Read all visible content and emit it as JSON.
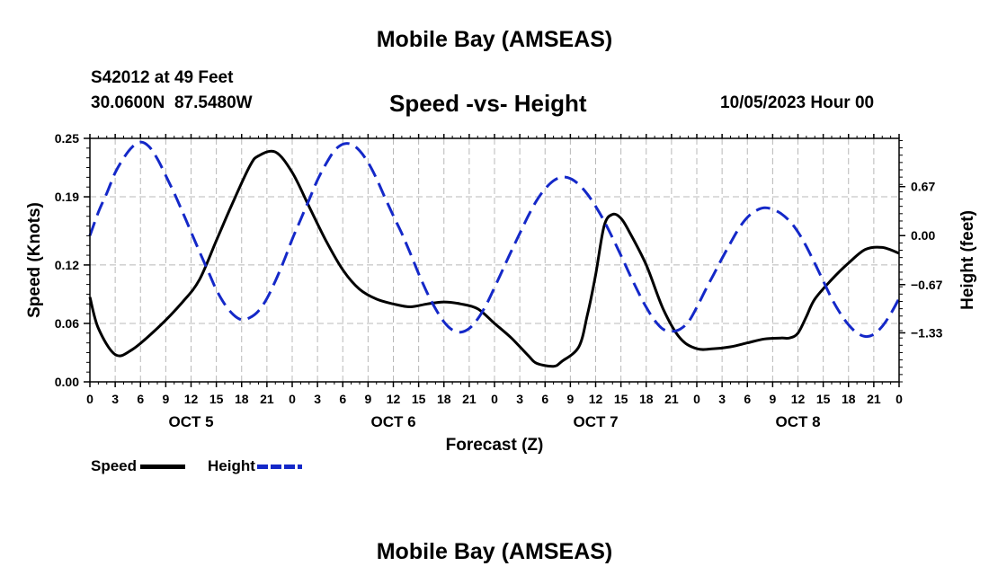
{
  "page": {
    "title_top": "Mobile Bay (AMSEAS)",
    "title_bottom": "Mobile Bay (AMSEAS)"
  },
  "chart_data": {
    "type": "line",
    "title": "Speed -vs- Height",
    "station": "S42012 at 49 Feet",
    "coordinates": "30.0600N  87.5480W",
    "datetime": "10/05/2023 Hour 00",
    "xlabel": "Forecast (Z)",
    "ylabel_left": "Speed (Knots)",
    "ylabel_right": "Height (feet)",
    "x_range": [
      0,
      96
    ],
    "x_ticks": [
      0,
      3,
      6,
      9,
      12,
      15,
      18,
      21,
      24,
      27,
      30,
      33,
      36,
      39,
      42,
      45,
      48,
      51,
      54,
      57,
      60,
      63,
      66,
      69,
      72,
      75,
      78,
      81,
      84,
      87,
      90,
      93,
      96
    ],
    "x_tick_labels": [
      "0",
      "3",
      "6",
      "9",
      "12",
      "15",
      "18",
      "21",
      "0",
      "3",
      "6",
      "9",
      "12",
      "15",
      "18",
      "21",
      "0",
      "3",
      "6",
      "9",
      "12",
      "15",
      "18",
      "21",
      "0",
      "3",
      "6",
      "9",
      "12",
      "15",
      "18",
      "21",
      "0"
    ],
    "day_labels": [
      {
        "label": "OCT 5",
        "x": 12
      },
      {
        "label": "OCT 6",
        "x": 36
      },
      {
        "label": "OCT 7",
        "x": 60
      },
      {
        "label": "OCT 8",
        "x": 84
      }
    ],
    "y_left": {
      "range": [
        0,
        0.25
      ],
      "ticks": [
        0,
        0.06,
        0.12,
        0.19,
        0.25
      ],
      "tick_labels": [
        "0.00",
        "0.06",
        "0.12",
        "0.19",
        "0.25"
      ]
    },
    "y_right": {
      "range": [
        -2.0,
        1.33
      ],
      "ticks": [
        0.67,
        0.0,
        -0.67,
        -1.33
      ],
      "tick_labels": [
        "0.67",
        "0.00",
        "−0.67",
        "−1.33"
      ]
    },
    "grid": true,
    "series": [
      {
        "name": "Speed",
        "axis": "left",
        "color": "#000000",
        "dash": "solid",
        "x": [
          0,
          1,
          3,
          5,
          8,
          11,
          13,
          15,
          17,
          19,
          20,
          22,
          24,
          26,
          28,
          30,
          32,
          34,
          36,
          38,
          40,
          42,
          44,
          46,
          48,
          50,
          52,
          53,
          55,
          56,
          58,
          59,
          60,
          61,
          62,
          63,
          64,
          66,
          68,
          70,
          72,
          74,
          76,
          78,
          80,
          82,
          83,
          84,
          85,
          86,
          88,
          90,
          92,
          94,
          96
        ],
        "values": [
          0.087,
          0.055,
          0.028,
          0.033,
          0.055,
          0.082,
          0.105,
          0.145,
          0.185,
          0.222,
          0.232,
          0.236,
          0.215,
          0.18,
          0.145,
          0.115,
          0.095,
          0.085,
          0.08,
          0.077,
          0.08,
          0.082,
          0.08,
          0.075,
          0.06,
          0.045,
          0.027,
          0.019,
          0.016,
          0.021,
          0.036,
          0.068,
          0.11,
          0.16,
          0.172,
          0.168,
          0.154,
          0.12,
          0.075,
          0.045,
          0.034,
          0.034,
          0.036,
          0.04,
          0.044,
          0.045,
          0.045,
          0.05,
          0.067,
          0.085,
          0.105,
          0.122,
          0.136,
          0.138,
          0.132
        ]
      },
      {
        "name": "Height",
        "axis": "right",
        "color": "#1428c8",
        "dash": "dashed",
        "x": [
          0,
          1,
          2,
          3,
          4,
          5,
          6,
          7,
          8,
          9,
          10,
          11,
          12,
          13,
          14,
          15,
          16,
          17,
          18,
          19,
          20,
          21,
          22,
          23,
          24,
          25,
          26,
          27,
          28,
          29,
          30,
          31,
          32,
          33,
          34,
          35,
          36,
          37,
          38,
          39,
          40,
          41,
          42,
          43,
          44,
          45,
          46,
          47,
          48,
          49,
          50,
          51,
          52,
          53,
          54,
          55,
          56,
          57,
          58,
          59,
          60,
          61,
          62,
          63,
          64,
          65,
          66,
          67,
          68,
          69,
          70,
          71,
          72,
          73,
          74,
          75,
          76,
          77,
          78,
          79,
          80,
          81,
          82,
          83,
          84,
          85,
          86,
          87,
          88,
          89,
          90,
          91,
          92,
          93,
          94,
          95,
          96
        ],
        "values": [
          0.0,
          0.32,
          0.58,
          0.86,
          1.06,
          1.21,
          1.28,
          1.22,
          1.05,
          0.82,
          0.58,
          0.32,
          0.05,
          -0.22,
          -0.48,
          -0.74,
          -0.94,
          -1.08,
          -1.15,
          -1.12,
          -1.03,
          -0.86,
          -0.62,
          -0.35,
          -0.05,
          0.22,
          0.49,
          0.76,
          0.98,
          1.16,
          1.25,
          1.25,
          1.16,
          1.0,
          0.78,
          0.52,
          0.27,
          0.03,
          -0.24,
          -0.52,
          -0.78,
          -1.0,
          -1.18,
          -1.29,
          -1.32,
          -1.27,
          -1.14,
          -0.95,
          -0.71,
          -0.46,
          -0.21,
          0.03,
          0.27,
          0.48,
          0.64,
          0.75,
          0.8,
          0.78,
          0.7,
          0.57,
          0.4,
          0.2,
          -0.03,
          -0.27,
          -0.52,
          -0.76,
          -0.98,
          -1.16,
          -1.28,
          -1.31,
          -1.28,
          -1.18,
          -0.98,
          -0.75,
          -0.53,
          -0.31,
          -0.1,
          0.1,
          0.25,
          0.34,
          0.38,
          0.36,
          0.3,
          0.2,
          0.05,
          -0.15,
          -0.38,
          -0.62,
          -0.86,
          -1.06,
          -1.22,
          -1.33,
          -1.38,
          -1.35,
          -1.24,
          -1.07,
          -0.86
        ]
      }
    ],
    "legend": {
      "placement": "bottom-left"
    }
  }
}
